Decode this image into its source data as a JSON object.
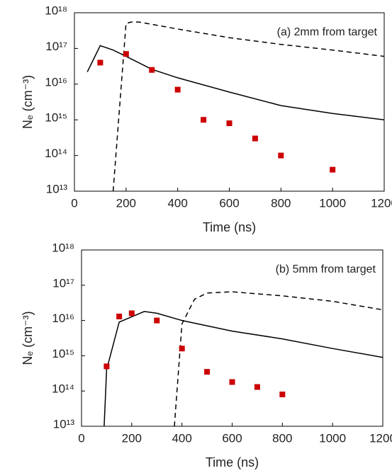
{
  "chart_data": [
    {
      "type": "line",
      "annotation": "(a) 2mm from target",
      "xlabel": "Time (ns)",
      "ylabel": "Nₑ (cm⁻³)",
      "xlim": [
        0,
        1200
      ],
      "xticks": [
        0,
        200,
        400,
        600,
        800,
        1000,
        1200
      ],
      "ylim": [
        10000000000000.0,
        1e+18
      ],
      "log_y": true,
      "yticks": [
        {
          "value": 10000000000000.0,
          "label": "10¹³"
        },
        {
          "value": 100000000000000.0,
          "label": "10¹⁴"
        },
        {
          "value": 1000000000000000.0,
          "label": "10¹⁵"
        },
        {
          "value": 1e+16,
          "label": "10¹⁶"
        },
        {
          "value": 1e+17,
          "label": "10¹⁷"
        },
        {
          "value": 1e+18,
          "label": "10¹⁸"
        }
      ],
      "series": [
        {
          "style": "solid",
          "color": "#000000",
          "x": [
            50,
            100,
            150,
            200,
            300,
            400,
            600,
            800,
            1000,
            1200
          ],
          "values": [
            2.2e+16,
            1.2e+17,
            9e+16,
            6e+16,
            2.6e+16,
            1.5e+16,
            6000000000000000.0,
            2500000000000000.0,
            1500000000000000.0,
            1000000000000000.0
          ]
        },
        {
          "style": "dashed",
          "color": "#000000",
          "x": [
            150,
            200,
            220,
            250,
            400,
            600,
            800,
            1000,
            1200
          ],
          "values": [
            10000000000000.0,
            5e+17,
            5.5e+17,
            5.5e+17,
            3.5e+17,
            2e+17,
            1.3e+17,
            9e+16,
            6e+16
          ]
        },
        {
          "style": "markers",
          "color": "#cc0000",
          "x": [
            100,
            200,
            300,
            400,
            500,
            600,
            700,
            800,
            1000
          ],
          "values": [
            4e+16,
            7e+16,
            2.5e+16,
            7000000000000000.0,
            1000000000000000.0,
            800000000000000.0,
            300000000000000.0,
            100000000000000.0,
            40000000000000.0
          ]
        }
      ]
    },
    {
      "type": "line",
      "annotation": "(b) 5mm from target",
      "xlabel": "Time (ns)",
      "ylabel": "Nₑ (cm⁻³)",
      "xlim": [
        0,
        1200
      ],
      "xticks": [
        0,
        200,
        400,
        600,
        800,
        1000,
        1200
      ],
      "ylim": [
        10000000000000.0,
        1e+18
      ],
      "log_y": true,
      "yticks": [
        {
          "value": 10000000000000.0,
          "label": "10¹³"
        },
        {
          "value": 100000000000000.0,
          "label": "10¹⁴"
        },
        {
          "value": 1000000000000000.0,
          "label": "10¹⁵"
        },
        {
          "value": 1e+16,
          "label": "10¹⁶"
        },
        {
          "value": 1e+17,
          "label": "10¹⁷"
        },
        {
          "value": 1e+18,
          "label": "10¹⁸"
        }
      ],
      "series": [
        {
          "style": "solid",
          "color": "#000000",
          "x": [
            90,
            100,
            150,
            250,
            300,
            400,
            600,
            800,
            1000,
            1200
          ],
          "values": [
            10000000000000.0,
            400000000000000.0,
            9000000000000000.0,
            1.8e+16,
            1.6e+16,
            1e+16,
            5000000000000000.0,
            3000000000000000.0,
            1600000000000000.0,
            900000000000000.0
          ]
        },
        {
          "style": "dashed",
          "color": "#000000",
          "x": [
            370,
            400,
            450,
            500,
            600,
            800,
            1000,
            1200
          ],
          "values": [
            10000000000000.0,
            8000000000000000.0,
            4e+16,
            6e+16,
            6.5e+16,
            5e+16,
            3.5e+16,
            2e+16
          ]
        },
        {
          "style": "markers",
          "color": "#cc0000",
          "x": [
            100,
            150,
            200,
            300,
            400,
            500,
            600,
            700,
            800
          ],
          "values": [
            500000000000000.0,
            1.3e+16,
            1.6e+16,
            1e+16,
            1600000000000000.0,
            350000000000000.0,
            180000000000000.0,
            130000000000000.0,
            80000000000000.0
          ]
        }
      ]
    }
  ]
}
